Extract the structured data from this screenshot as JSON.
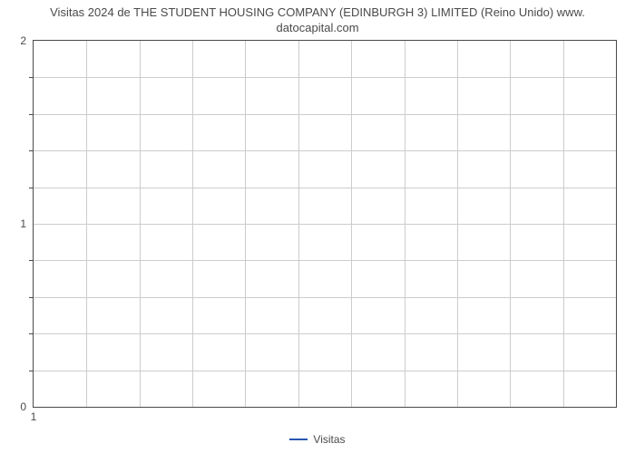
{
  "chart": {
    "type": "line",
    "title_line1": "Visitas 2024 de THE STUDENT HOUSING COMPANY (EDINBURGH 3) LIMITED (Reino Unido) www.",
    "title_line2": "datocapital.com",
    "title_fontsize": 13,
    "title_color": "#4a4a4a",
    "background_color": "#ffffff",
    "border_color": "#4a4a4a",
    "grid_color": "#cccccc",
    "ylim": [
      0,
      2
    ],
    "y_major_ticks": [
      0,
      1,
      2
    ],
    "y_minor_count_between": 4,
    "x_vertical_lines": 11,
    "x_tick_labels": [
      "1"
    ],
    "x_tick_positions_frac": [
      0.0
    ],
    "tick_label_fontsize": 12,
    "tick_label_color": "#4a4a4a",
    "series": [
      {
        "name": "Visitas",
        "color": "#2956b2",
        "values": []
      }
    ],
    "legend": {
      "position": "bottom-center",
      "items": [
        {
          "label": "Visitas",
          "color": "#2956b2"
        }
      ]
    }
  }
}
